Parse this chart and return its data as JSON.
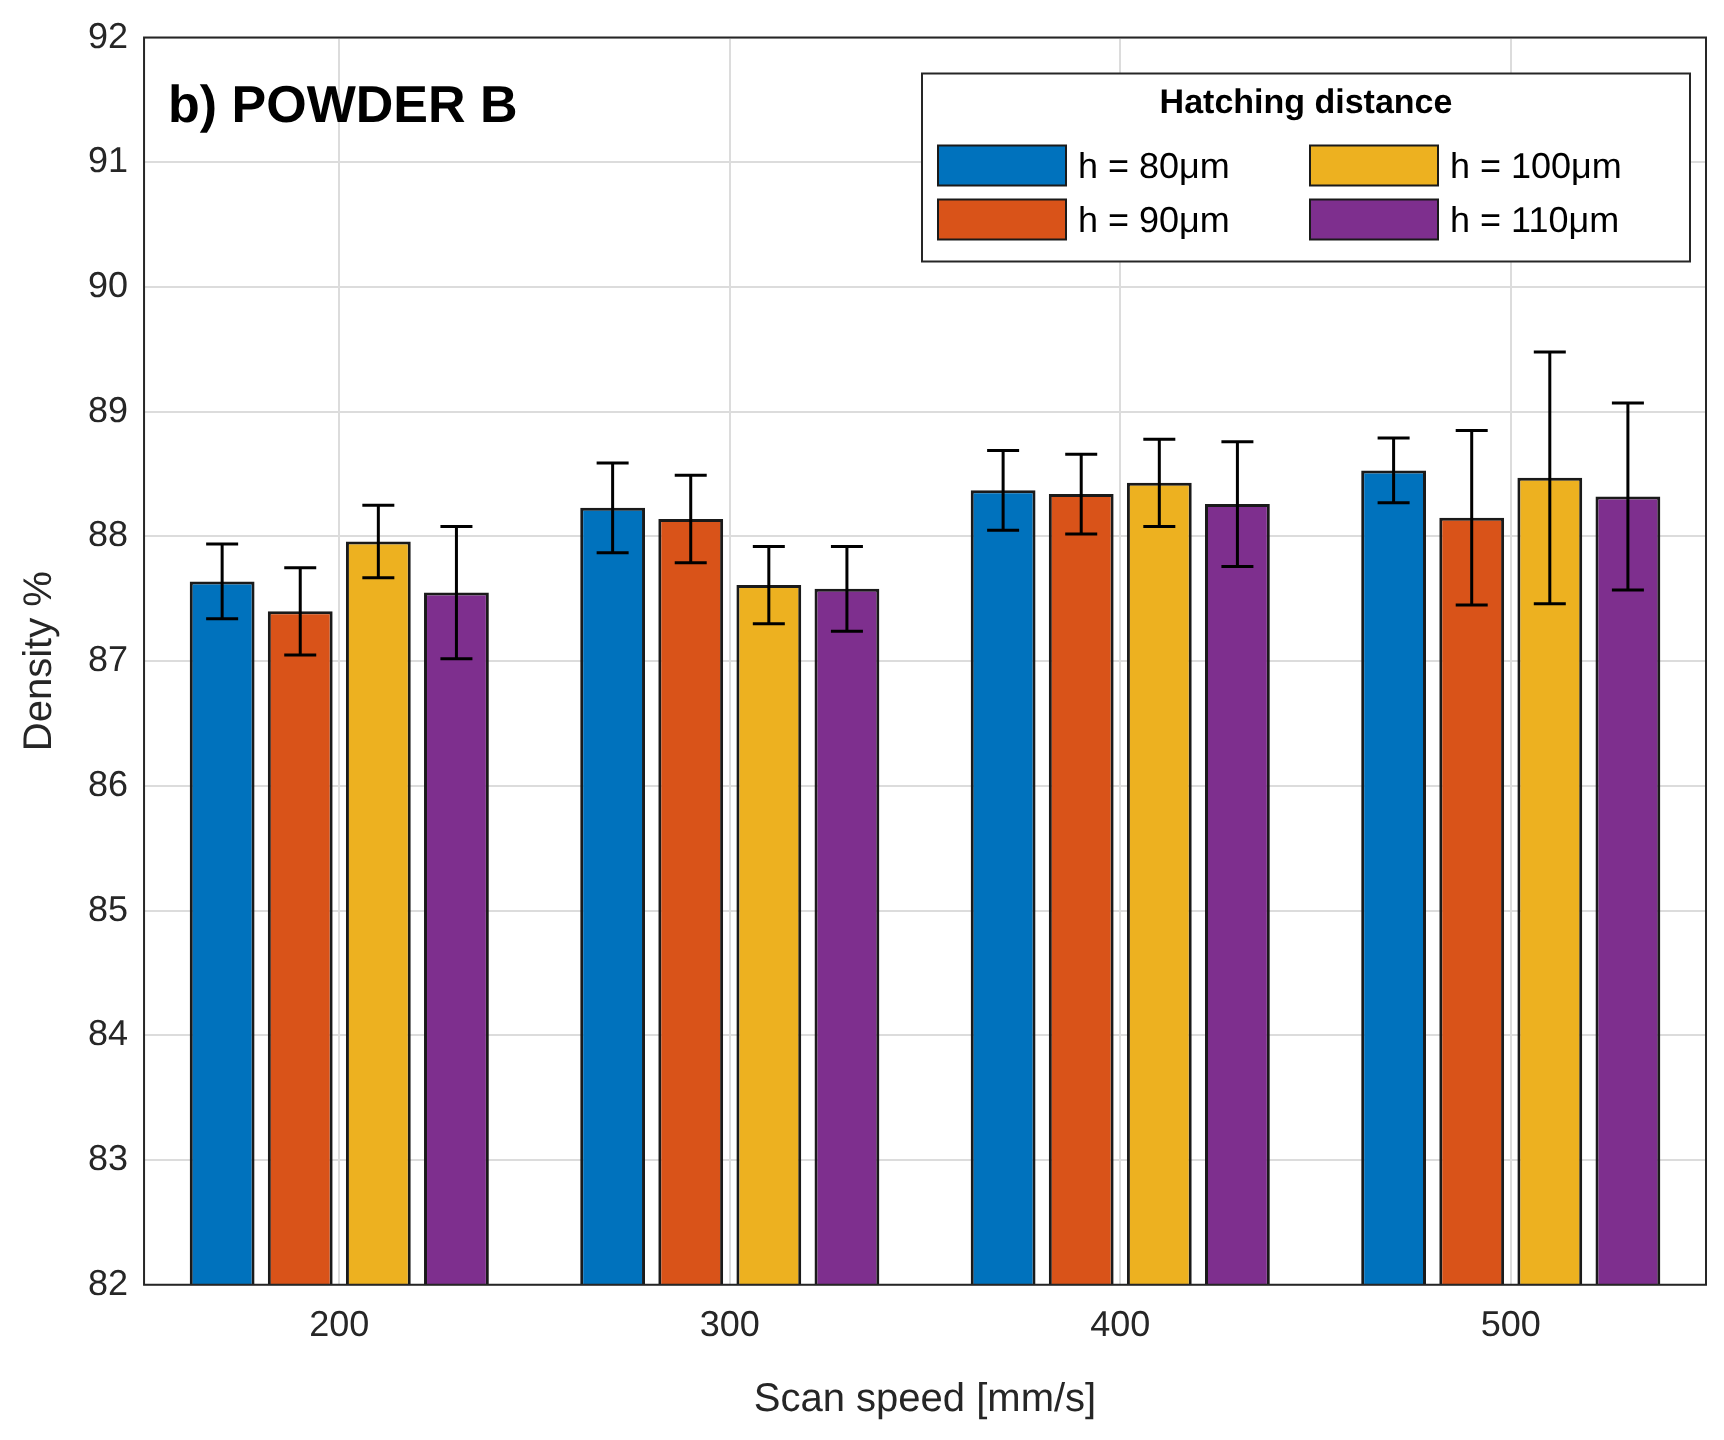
{
  "chart_data": {
    "type": "bar",
    "title": "b) POWDER B",
    "xlabel": "Scan speed [mm/s]",
    "ylabel": "Density %",
    "legend_title": "Hatching distance",
    "categories": [
      "200",
      "300",
      "400",
      "500"
    ],
    "series": [
      {
        "name": "h = 80μm",
        "color": "#0072bd",
        "values": [
          87.64,
          88.23,
          88.37,
          88.53
        ],
        "errors": [
          0.3,
          0.36,
          0.32,
          0.26
        ]
      },
      {
        "name": "h = 90μm",
        "color": "#d95319",
        "values": [
          87.4,
          88.14,
          88.34,
          88.15
        ],
        "errors": [
          0.35,
          0.35,
          0.32,
          0.7
        ]
      },
      {
        "name": "h = 100μm",
        "color": "#edb120",
        "values": [
          87.96,
          87.61,
          88.43,
          88.47
        ],
        "errors": [
          0.29,
          0.31,
          0.35,
          1.01
        ]
      },
      {
        "name": "h = 110μm",
        "color": "#7e2f8e",
        "values": [
          87.55,
          87.58,
          88.26,
          88.32
        ],
        "errors": [
          0.53,
          0.34,
          0.5,
          0.75
        ]
      }
    ],
    "ylim": [
      82,
      92
    ],
    "yticks": [
      82,
      83,
      84,
      85,
      86,
      87,
      88,
      89,
      90,
      91,
      92
    ],
    "grid": true,
    "legend": "top right"
  }
}
